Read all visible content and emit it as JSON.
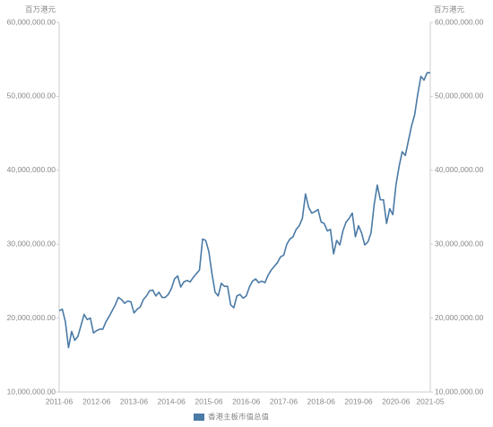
{
  "chart_data": {
    "type": "line",
    "y_label": "百万港元",
    "y2_label": "百万港元",
    "categories": [
      "2011-06",
      null,
      null,
      null,
      null,
      null,
      null,
      null,
      null,
      null,
      null,
      null,
      "2012-06",
      null,
      null,
      null,
      null,
      null,
      null,
      null,
      null,
      null,
      null,
      null,
      "2013-06",
      null,
      null,
      null,
      null,
      null,
      null,
      null,
      null,
      null,
      null,
      null,
      "2014-06",
      null,
      null,
      null,
      null,
      null,
      null,
      null,
      null,
      null,
      null,
      null,
      "2015-06",
      null,
      null,
      null,
      null,
      null,
      null,
      null,
      null,
      null,
      null,
      null,
      "2016-06",
      null,
      null,
      null,
      null,
      null,
      null,
      null,
      null,
      null,
      null,
      null,
      "2017-06",
      null,
      null,
      null,
      null,
      null,
      null,
      null,
      null,
      null,
      null,
      null,
      "2018-06",
      null,
      null,
      null,
      null,
      null,
      null,
      null,
      null,
      null,
      null,
      null,
      "2019-06",
      null,
      null,
      null,
      null,
      null,
      null,
      null,
      null,
      null,
      null,
      null,
      "2020-06",
      null,
      null,
      null,
      null,
      null,
      null,
      null,
      null,
      null,
      null,
      "2021-05"
    ],
    "series": [
      {
        "name": "香港主板市值总值",
        "color": "#4a7aa6",
        "values": [
          21000000,
          21200000,
          19500000,
          16000000,
          18200000,
          17000000,
          17500000,
          19000000,
          20500000,
          19800000,
          20000000,
          18000000,
          18300000,
          18500000,
          18500000,
          19500000,
          20200000,
          21000000,
          21800000,
          22800000,
          22500000,
          22000000,
          22300000,
          22200000,
          20700000,
          21200000,
          21500000,
          22500000,
          23000000,
          23700000,
          23800000,
          23000000,
          23500000,
          22800000,
          22800000,
          23200000,
          24000000,
          25300000,
          25700000,
          24200000,
          24900000,
          25100000,
          24900000,
          25500000,
          26000000,
          26500000,
          30700000,
          30500000,
          29000000,
          26000000,
          23500000,
          23000000,
          24700000,
          24300000,
          24300000,
          21800000,
          21400000,
          23000000,
          23200000,
          22700000,
          23000000,
          24200000,
          25000000,
          25300000,
          24800000,
          25000000,
          24800000,
          25800000,
          26500000,
          27000000,
          27500000,
          28300000,
          28500000,
          30000000,
          30700000,
          31000000,
          32000000,
          32500000,
          33500000,
          36800000,
          35000000,
          34200000,
          34400000,
          34700000,
          33000000,
          32800000,
          31800000,
          32000000,
          28700000,
          30500000,
          29900000,
          31800000,
          33000000,
          33500000,
          34200000,
          31000000,
          32500000,
          31500000,
          29900000,
          30300000,
          31500000,
          35300000,
          38000000,
          36000000,
          36000000,
          32800000,
          34800000,
          34000000,
          38000000,
          40500000,
          42500000,
          42000000,
          44000000,
          46000000,
          47500000,
          50300000,
          52700000,
          52200000,
          53200000,
          53200000
        ]
      }
    ],
    "ylim": [
      10000000,
      60000000
    ],
    "yticks": [
      {
        "value": 10000000,
        "label": "10,000,000.00"
      },
      {
        "value": 20000000,
        "label": "20,000,000.00"
      },
      {
        "value": 30000000,
        "label": "30,000,000.00"
      },
      {
        "value": 40000000,
        "label": "40,000,000.00"
      },
      {
        "value": 50000000,
        "label": "50,000,000.00"
      },
      {
        "value": 60000000,
        "label": "60,000,000.00"
      }
    ],
    "y2lim": [
      10000000,
      60000000
    ],
    "y2ticks": [
      {
        "value": 10000000,
        "label": "10,000,000.00"
      },
      {
        "value": 20000000,
        "label": "20,000,000.00"
      },
      {
        "value": 30000000,
        "label": "30,000,000.00"
      },
      {
        "value": 40000000,
        "label": "40,000,000.00"
      },
      {
        "value": 50000000,
        "label": "50,000,000.00"
      },
      {
        "value": 60000000,
        "label": "60,000,000.00"
      }
    ],
    "grid": false,
    "legend": "bottom"
  }
}
